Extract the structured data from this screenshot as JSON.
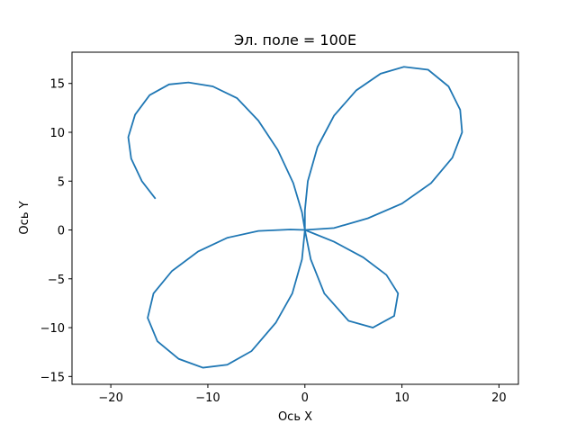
{
  "chart_data": {
    "type": "line",
    "title": "Эл. поле = 100E",
    "xlabel": "Ось X",
    "ylabel": "Ось Y",
    "xlim": [
      -24,
      22
    ],
    "ylim": [
      -15.8,
      18.2
    ],
    "xticks": [
      -20,
      -10,
      0,
      10,
      20
    ],
    "yticks": [
      -15,
      -10,
      -5,
      0,
      5,
      10,
      15
    ],
    "grid": false,
    "series": [
      {
        "color": "#1f77b4",
        "points": [
          [
            -15.4,
            3.2
          ],
          [
            -16.8,
            5.0
          ],
          [
            -17.9,
            7.3
          ],
          [
            -18.2,
            9.5
          ],
          [
            -17.5,
            11.8
          ],
          [
            -16.0,
            13.8
          ],
          [
            -14.0,
            14.9
          ],
          [
            -12.0,
            15.1
          ],
          [
            -9.5,
            14.7
          ],
          [
            -7.0,
            13.5
          ],
          [
            -4.8,
            11.2
          ],
          [
            -2.8,
            8.2
          ],
          [
            -1.2,
            4.8
          ],
          [
            -0.3,
            1.8
          ],
          [
            0.0,
            0.0
          ],
          [
            0.0,
            2.0
          ],
          [
            0.3,
            5.0
          ],
          [
            1.3,
            8.5
          ],
          [
            3.0,
            11.7
          ],
          [
            5.3,
            14.3
          ],
          [
            7.8,
            16.0
          ],
          [
            10.2,
            16.7
          ],
          [
            12.7,
            16.4
          ],
          [
            14.8,
            14.7
          ],
          [
            16.0,
            12.3
          ],
          [
            16.2,
            10.0
          ],
          [
            15.2,
            7.4
          ],
          [
            13.0,
            4.8
          ],
          [
            10.0,
            2.7
          ],
          [
            6.5,
            1.2
          ],
          [
            3.0,
            0.2
          ],
          [
            0.0,
            0.0
          ],
          [
            3.0,
            -1.2
          ],
          [
            6.0,
            -2.8
          ],
          [
            8.4,
            -4.6
          ],
          [
            9.6,
            -6.5
          ],
          [
            9.2,
            -8.8
          ],
          [
            7.0,
            -10.0
          ],
          [
            4.5,
            -9.3
          ],
          [
            2.0,
            -6.5
          ],
          [
            0.6,
            -3.0
          ],
          [
            0.0,
            0.0
          ],
          [
            -0.3,
            -3.0
          ],
          [
            -1.3,
            -6.5
          ],
          [
            -3.0,
            -9.5
          ],
          [
            -5.5,
            -12.4
          ],
          [
            -8.0,
            -13.8
          ],
          [
            -10.5,
            -14.1
          ],
          [
            -13.0,
            -13.2
          ],
          [
            -15.2,
            -11.4
          ],
          [
            -16.2,
            -9.0
          ],
          [
            -15.6,
            -6.5
          ],
          [
            -13.7,
            -4.2
          ],
          [
            -11.0,
            -2.2
          ],
          [
            -8.0,
            -0.8
          ],
          [
            -4.8,
            -0.1
          ],
          [
            -1.5,
            0.05
          ],
          [
            0.0,
            0.0
          ]
        ]
      }
    ]
  }
}
